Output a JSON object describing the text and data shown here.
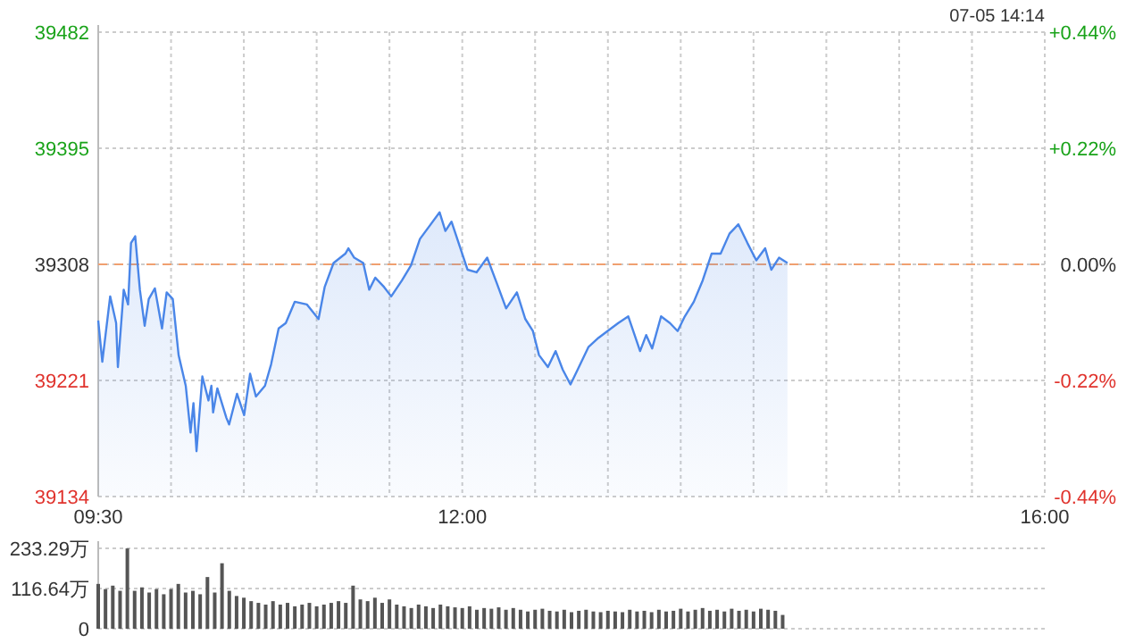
{
  "chart_data": [
    {
      "type": "area",
      "annotations": [
        "07-05 14:14"
      ],
      "xlim": [
        9.5,
        16
      ],
      "xticks": [
        {
          "value": 9.5,
          "label": "09:30"
        },
        {
          "value": 10,
          "label": null
        },
        {
          "value": 10.5,
          "label": null
        },
        {
          "value": 11,
          "label": null
        },
        {
          "value": 11.5,
          "label": null
        },
        {
          "value": 12,
          "label": "12:00"
        },
        {
          "value": 12.5,
          "label": null
        },
        {
          "value": 13,
          "label": null
        },
        {
          "value": 13.5,
          "label": null
        },
        {
          "value": 14,
          "label": null
        },
        {
          "value": 14.5,
          "label": null
        },
        {
          "value": 15,
          "label": null
        },
        {
          "value": 15.5,
          "label": null
        },
        {
          "value": 16,
          "label": "16:00"
        }
      ],
      "ylim": [
        39134,
        39482
      ],
      "yticks": [
        39134,
        39221,
        39308,
        39395,
        39482
      ],
      "y2lim": [
        -0.44,
        0.44
      ],
      "y2ticks": [
        {
          "value": -0.44,
          "label": "-0.44%"
        },
        {
          "value": -0.22,
          "label": "-0.22%"
        },
        {
          "value": 0,
          "label": "0.00%"
        },
        {
          "value": 0.22,
          "label": "+0.22%"
        },
        {
          "value": 0.44,
          "label": "+0.44%"
        }
      ],
      "grid": true,
      "ref_lines": [
        {
          "axis": "y",
          "value": 39308,
          "color": "#f0a070",
          "line_style": "dashed"
        }
      ],
      "series": [
        {
          "color": "#4a86e8",
          "x": [
            9.5,
            9.528,
            9.582,
            9.623,
            9.635,
            9.675,
            9.705,
            9.725,
            9.754,
            9.786,
            9.819,
            9.847,
            9.889,
            9.938,
            9.97,
            10.012,
            10.052,
            10.101,
            10.134,
            10.154,
            10.175,
            10.215,
            10.257,
            10.277,
            10.289,
            10.318,
            10.38,
            10.399,
            10.453,
            10.502,
            10.543,
            10.583,
            10.645,
            10.687,
            10.739,
            10.788,
            10.85,
            10.932,
            11.013,
            11.055,
            11.116,
            11.197,
            11.218,
            11.258,
            11.32,
            11.361,
            11.402,
            11.463,
            11.512,
            11.586,
            11.647,
            11.709,
            11.77,
            11.844,
            11.884,
            11.926,
            11.975,
            12.036,
            12.098,
            12.171,
            12.24,
            12.301,
            12.375,
            12.433,
            12.485,
            12.527,
            12.588,
            12.641,
            12.69,
            12.743,
            12.792,
            12.866,
            12.936,
            12.997,
            13.071,
            13.14,
            13.221,
            13.263,
            13.304,
            13.365,
            13.426,
            13.479,
            13.528,
            13.59,
            13.651,
            13.712,
            13.774,
            13.835,
            13.896,
            13.958,
            14.019,
            14.08,
            14.122,
            14.175,
            14.233
          ],
          "values": [
            39266,
            39235,
            39284,
            39264,
            39231,
            39289,
            39278,
            39324,
            39329,
            39289,
            39262,
            39282,
            39290,
            39260,
            39287,
            39282,
            39240,
            39217,
            39182,
            39204,
            39168,
            39224,
            39206,
            39217,
            39197,
            39215,
            39193,
            39188,
            39211,
            39195,
            39226,
            39209,
            39217,
            39233,
            39260,
            39264,
            39280,
            39278,
            39267,
            39291,
            39309,
            39316,
            39320,
            39313,
            39309,
            39289,
            39298,
            39291,
            39284,
            39296,
            39307,
            39327,
            39336,
            39347,
            39333,
            39340,
            39324,
            39304,
            39302,
            39313,
            39293,
            39275,
            39287,
            39267,
            39258,
            39240,
            39231,
            39243,
            39229,
            39218,
            39229,
            39246,
            39253,
            39258,
            39264,
            39269,
            39243,
            39255,
            39245,
            39269,
            39264,
            39258,
            39269,
            39280,
            39296,
            39316,
            39316,
            39331,
            39338,
            39324,
            39311,
            39320,
            39304,
            39313,
            39309
          ]
        }
      ]
    },
    {
      "type": "bar",
      "xlim": [
        9.5,
        16
      ],
      "ylim": [
        0,
        233.29
      ],
      "yticks": [
        0,
        {
          "value": 116.64,
          "label": "116.64万"
        },
        {
          "value": 233.29,
          "label": "233.29万"
        }
      ],
      "tick_labels": "y",
      "grid": "y",
      "series": [
        {
          "color": "#555555",
          "x": [
            9.5,
            9.55,
            9.6,
            9.65,
            9.7,
            9.75,
            9.8,
            9.85,
            9.9,
            9.95,
            10,
            10.05,
            10.1,
            10.15,
            10.2,
            10.25,
            10.3,
            10.35,
            10.4,
            10.45,
            10.5,
            10.55,
            10.6,
            10.65,
            10.7,
            10.75,
            10.8,
            10.85,
            10.9,
            10.95,
            11,
            11.05,
            11.1,
            11.15,
            11.2,
            11.25,
            11.3,
            11.35,
            11.4,
            11.45,
            11.5,
            11.55,
            11.6,
            11.65,
            11.7,
            11.75,
            11.8,
            11.85,
            11.9,
            11.95,
            12,
            12.05,
            12.1,
            12.15,
            12.2,
            12.25,
            12.3,
            12.35,
            12.4,
            12.45,
            12.5,
            12.55,
            12.6,
            12.65,
            12.7,
            12.75,
            12.8,
            12.85,
            12.9,
            12.95,
            13,
            13.05,
            13.1,
            13.15,
            13.2,
            13.25,
            13.3,
            13.35,
            13.4,
            13.45,
            13.5,
            13.55,
            13.6,
            13.65,
            13.7,
            13.75,
            13.8,
            13.85,
            13.9,
            13.95,
            14,
            14.05,
            14.1,
            14.15,
            14.2
          ],
          "values": [
            130,
            115,
            125,
            110,
            233,
            110,
            120,
            105,
            115,
            100,
            115,
            130,
            105,
            110,
            100,
            150,
            105,
            190,
            110,
            95,
            90,
            80,
            75,
            70,
            80,
            70,
            75,
            65,
            70,
            75,
            65,
            70,
            75,
            80,
            75,
            125,
            85,
            80,
            90,
            75,
            85,
            70,
            65,
            60,
            70,
            65,
            60,
            70,
            65,
            62,
            60,
            65,
            55,
            60,
            58,
            62,
            55,
            60,
            55,
            50,
            55,
            58,
            52,
            50,
            55,
            48,
            52,
            55,
            50,
            48,
            52,
            50,
            48,
            55,
            50,
            52,
            48,
            55,
            50,
            52,
            58,
            50,
            55,
            60,
            52,
            55,
            50,
            58,
            52,
            55,
            50,
            58,
            55,
            52,
            40
          ]
        }
      ]
    }
  ]
}
